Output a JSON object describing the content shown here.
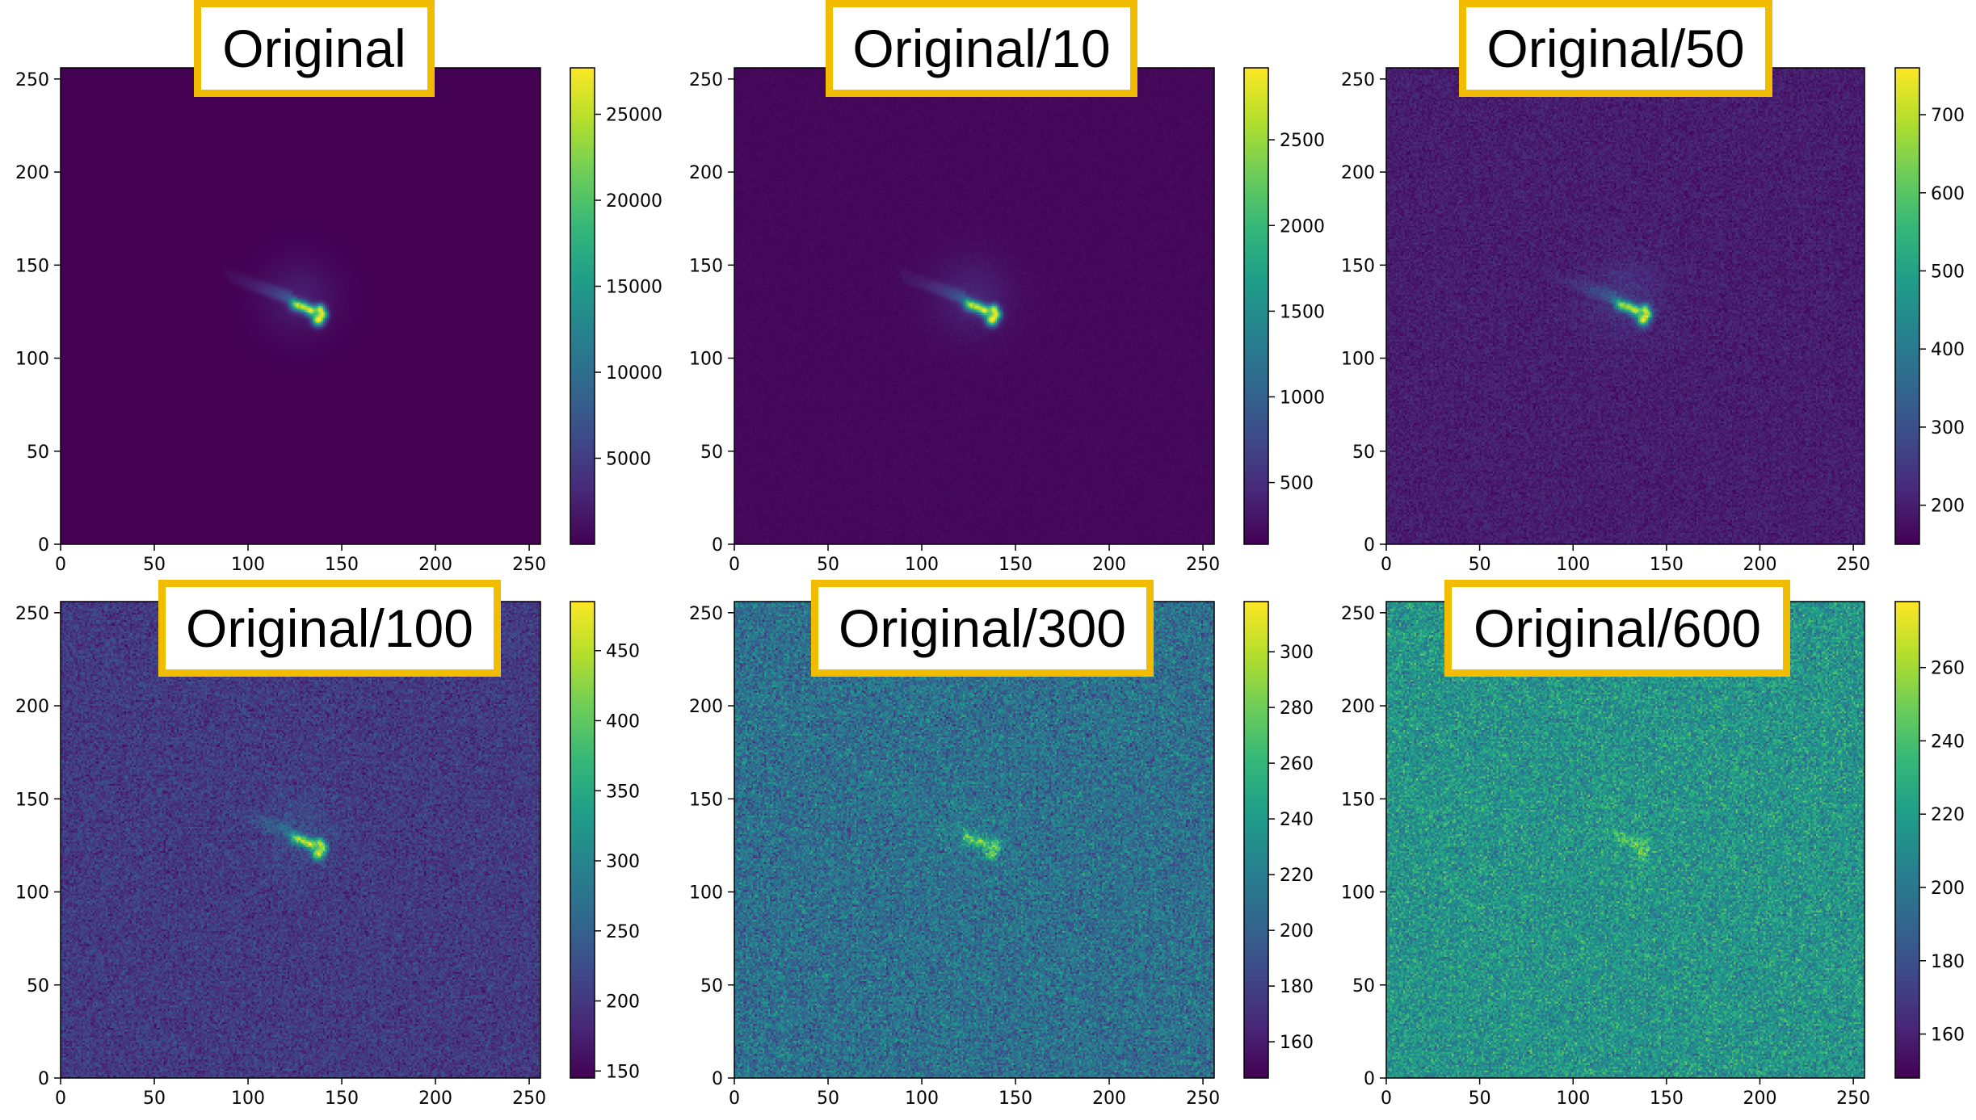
{
  "figure": {
    "colormap": "viridis",
    "colors": {
      "label_border": "#F2BC00",
      "viridis_stops": [
        "#440154",
        "#482878",
        "#3E4A89",
        "#31688E",
        "#26828E",
        "#1F9E89",
        "#35B779",
        "#6DCD59",
        "#B4DE2C",
        "#FDE725"
      ]
    }
  },
  "chart_data": [
    {
      "type": "heatmap",
      "label": "Original",
      "xlim": [
        0,
        256
      ],
      "ylim": [
        0,
        256
      ],
      "xticks": [
        "0",
        "50",
        "100",
        "150",
        "200",
        "250"
      ],
      "yticks": [
        "0",
        "50",
        "100",
        "150",
        "200",
        "250"
      ],
      "colorbar": {
        "range": [
          0,
          27700
        ],
        "ticks": [
          "5000",
          "10000",
          "15000",
          "20000",
          "25000"
        ]
      },
      "background_level": 0.0,
      "noise_amplitude": 0.0,
      "feature": {
        "center": [
          135,
          124
        ],
        "peak_level": 1.0
      }
    },
    {
      "type": "heatmap",
      "label": "Original/10",
      "xlim": [
        0,
        256
      ],
      "ylim": [
        0,
        256
      ],
      "xticks": [
        "0",
        "50",
        "100",
        "150",
        "200",
        "250"
      ],
      "yticks": [
        "0",
        "50",
        "100",
        "150",
        "200",
        "250"
      ],
      "colorbar": {
        "range": [
          140,
          2920
        ],
        "ticks": [
          "500",
          "1000",
          "1500",
          "2000",
          "2500"
        ]
      },
      "background_level": 0.02,
      "noise_amplitude": 0.01,
      "feature": {
        "center": [
          135,
          124
        ],
        "peak_level": 1.0
      }
    },
    {
      "type": "heatmap",
      "label": "Original/50",
      "xlim": [
        0,
        256
      ],
      "ylim": [
        0,
        256
      ],
      "xticks": [
        "0",
        "50",
        "100",
        "150",
        "200",
        "250"
      ],
      "yticks": [
        "0",
        "50",
        "100",
        "150",
        "200",
        "250"
      ],
      "colorbar": {
        "range": [
          150,
          760
        ],
        "ticks": [
          "200",
          "300",
          "400",
          "500",
          "600",
          "700"
        ]
      },
      "background_level": 0.08,
      "noise_amplitude": 0.05,
      "feature": {
        "center": [
          135,
          124
        ],
        "peak_level": 0.95
      }
    },
    {
      "type": "heatmap",
      "label": "Original/100",
      "xlim": [
        0,
        256
      ],
      "ylim": [
        0,
        256
      ],
      "xticks": [
        "0",
        "50",
        "100",
        "150",
        "200",
        "250"
      ],
      "yticks": [
        "0",
        "50",
        "100",
        "150",
        "200",
        "250"
      ],
      "colorbar": {
        "range": [
          145,
          485
        ],
        "ticks": [
          "150",
          "200",
          "250",
          "300",
          "350",
          "400",
          "450"
        ]
      },
      "background_level": 0.17,
      "noise_amplitude": 0.09,
      "feature": {
        "center": [
          135,
          124
        ],
        "peak_level": 0.92
      }
    },
    {
      "type": "heatmap",
      "label": "Original/300",
      "xlim": [
        0,
        256
      ],
      "ylim": [
        0,
        256
      ],
      "xticks": [
        "0",
        "50",
        "100",
        "150",
        "200",
        "250"
      ],
      "yticks": [
        "0",
        "50",
        "100",
        "150",
        "200",
        "250"
      ],
      "colorbar": {
        "range": [
          147,
          318
        ],
        "ticks": [
          "160",
          "180",
          "200",
          "220",
          "240",
          "260",
          "280",
          "300"
        ]
      },
      "background_level": 0.37,
      "noise_amplitude": 0.16,
      "feature": {
        "center": [
          135,
          124
        ],
        "peak_level": 0.78
      }
    },
    {
      "type": "heatmap",
      "label": "Original/600",
      "xlim": [
        0,
        256
      ],
      "ylim": [
        0,
        256
      ],
      "xticks": [
        "0",
        "50",
        "100",
        "150",
        "200",
        "250"
      ],
      "yticks": [
        "0",
        "50",
        "100",
        "150",
        "200",
        "250"
      ],
      "colorbar": {
        "range": [
          148,
          278
        ],
        "ticks": [
          "160",
          "180",
          "200",
          "220",
          "240",
          "260"
        ]
      },
      "background_level": 0.52,
      "noise_amplitude": 0.16,
      "feature": {
        "center": [
          135,
          124
        ],
        "peak_level": 0.72
      }
    }
  ]
}
